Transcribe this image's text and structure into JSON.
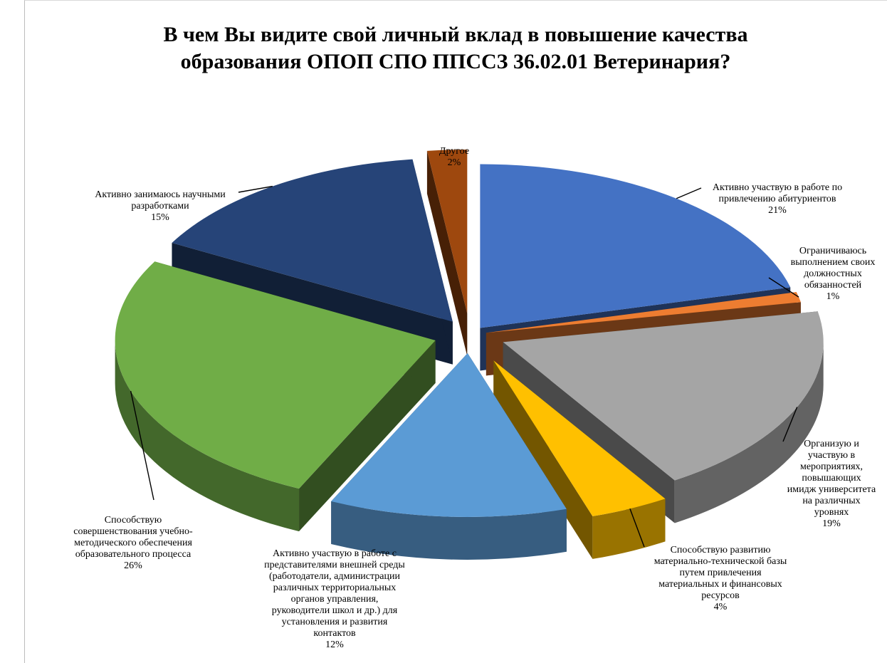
{
  "chart_data": {
    "type": "pie",
    "title_lines": [
      "В чем Вы видите свой личный вклад в повышение качества",
      "образования ОПОП СПО ППССЗ 36.02.01 Ветеринария?"
    ],
    "slices": [
      {
        "label_lines": [
          "Активно участвую в работе по",
          "привлечению абитуриентов"
        ],
        "percent_label": "21%",
        "value": 21,
        "color": "#4472c4"
      },
      {
        "label_lines": [
          "Ограничиваюсь",
          "выполнением своих",
          "должностных",
          "обязанностей"
        ],
        "percent_label": "1%",
        "value": 1,
        "color": "#ed7d31"
      },
      {
        "label_lines": [
          "Организую и",
          "участвую в",
          "мероприятиях,",
          "повышающих",
          "имидж университета",
          "на различных",
          "уровнях"
        ],
        "percent_label": "19%",
        "value": 19,
        "color": "#a5a5a5"
      },
      {
        "label_lines": [
          "Способствую развитию",
          "материально-технической базы",
          "путем привлечения",
          "материальных и финансовых",
          "ресурсов"
        ],
        "percent_label": "4%",
        "value": 4,
        "color": "#ffc000"
      },
      {
        "label_lines": [
          "Активно участвую в работе с",
          "представителями внешней среды",
          "(работодатели, администрации",
          "различных территориальных",
          "органов управления,",
          "руководители школ и др.) для",
          "установления и развития",
          "контактов"
        ],
        "percent_label": "12%",
        "value": 12,
        "color": "#5b9bd5"
      },
      {
        "label_lines": [
          "Способствую",
          "совершенствования учебно-",
          "методического обеспечения",
          "образовательного процесса"
        ],
        "percent_label": "26%",
        "value": 26,
        "color": "#70ad47"
      },
      {
        "label_lines": [
          "Активно занимаюсь научными",
          "разработками"
        ],
        "percent_label": "15%",
        "value": 15,
        "color": "#264478"
      },
      {
        "label_lines": [
          "Другое"
        ],
        "percent_label": "2%",
        "value": 2,
        "color": "#9e480e"
      }
    ],
    "legend": "none",
    "exploded": true,
    "style": "3d"
  }
}
